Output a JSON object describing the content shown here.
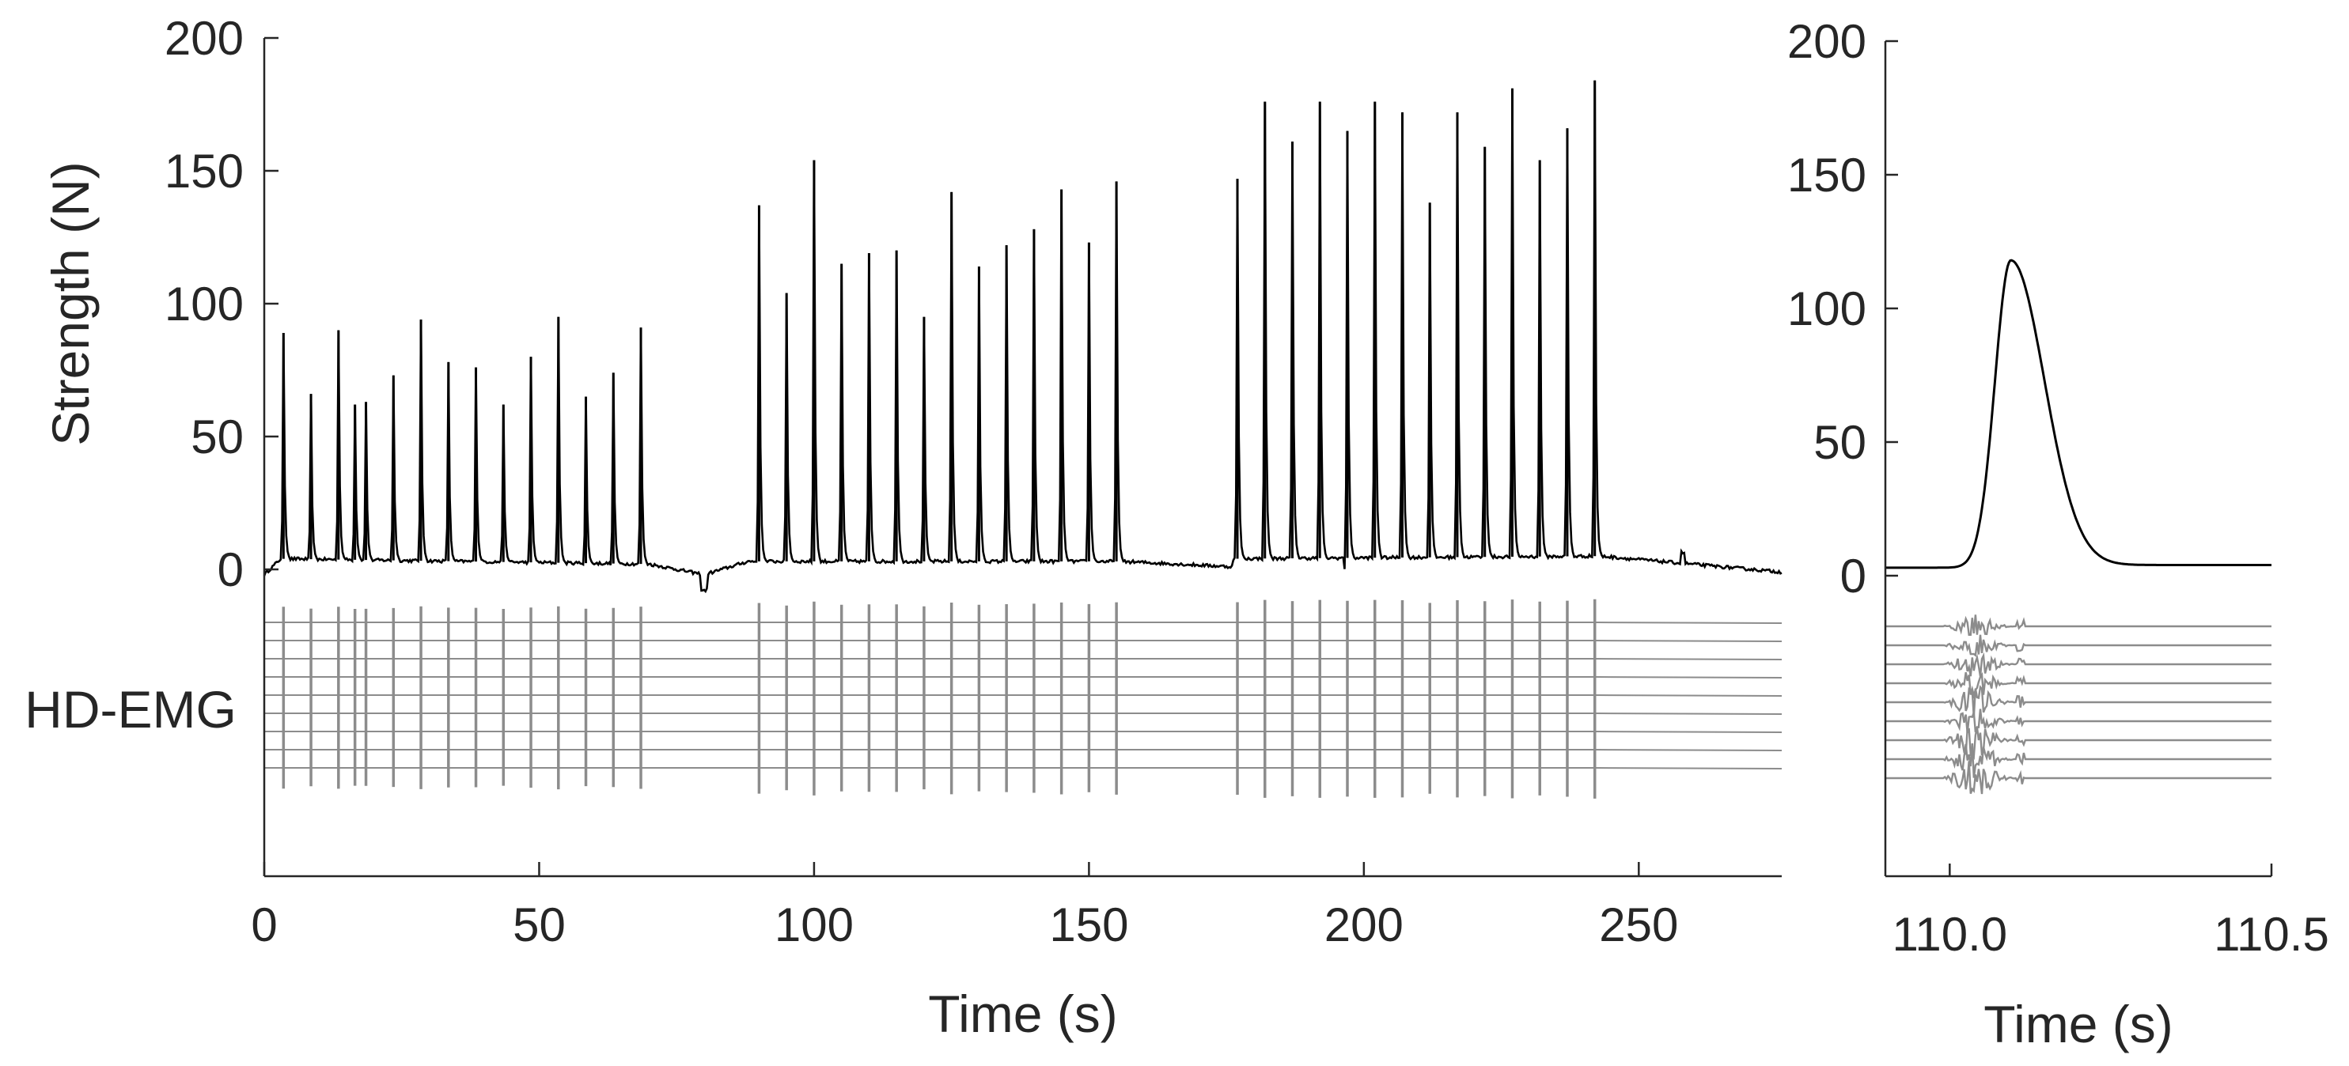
{
  "chart_data": [
    {
      "id": "main",
      "type": "line",
      "xlabel": "Time (s)",
      "ylabel": "Strength (N)",
      "xlim": [
        0,
        276
      ],
      "ylim": [
        0,
        200
      ],
      "xticks": [
        0,
        50,
        100,
        150,
        200,
        250
      ],
      "yticks": [
        0,
        50,
        100,
        150,
        200
      ],
      "grid": false,
      "series_color": "#000000",
      "emg_label": "HD-EMG",
      "emg_color": "#8c8c8c",
      "emg_channels": 9,
      "baseline_segments": [
        {
          "x": [
            0,
            3,
            70,
            80,
            88
          ],
          "y": [
            -2,
            4,
            2,
            -2,
            3
          ]
        },
        {
          "x": [
            88,
            156,
            176
          ],
          "y": [
            3,
            3,
            1
          ]
        },
        {
          "x": [
            176,
            243,
            276
          ],
          "y": [
            4,
            5,
            -1
          ]
        }
      ],
      "spikes": {
        "x": [
          3.5,
          8.5,
          13.5,
          16.5,
          18.5,
          23.5,
          28.5,
          33.5,
          38.5,
          43.5,
          48.5,
          53.5,
          58.5,
          63.5,
          68.5,
          90,
          95,
          100,
          105,
          110,
          115,
          120,
          125,
          130,
          135,
          140,
          145,
          150,
          155,
          177,
          182,
          187,
          192,
          197,
          202,
          207,
          212,
          217,
          222,
          227,
          232,
          237,
          242
        ],
        "y": [
          89,
          66,
          90,
          62,
          63,
          73,
          94,
          78,
          76,
          62,
          80,
          95,
          65,
          74,
          91,
          137,
          104,
          154,
          115,
          119,
          120,
          95,
          142,
          114,
          122,
          128,
          143,
          123,
          146,
          147,
          176,
          161,
          176,
          165,
          176,
          172,
          138,
          172,
          159,
          181,
          154,
          166,
          184
        ]
      }
    },
    {
      "id": "zoom",
      "type": "line",
      "xlabel": "Time (s)",
      "ylim": [
        0,
        200
      ],
      "xlim": [
        109.9,
        110.5
      ],
      "xticks": [
        110.0,
        110.5
      ],
      "xtick_labels": [
        "110.0",
        "110.5"
      ],
      "yticks": [
        0,
        50,
        100,
        150,
        200
      ],
      "grid": false,
      "peak": {
        "x": 110.095,
        "y": 118
      },
      "baseline": 3,
      "end_value": 4,
      "emg_color": "#8c8c8c",
      "emg_channels": 9
    }
  ]
}
